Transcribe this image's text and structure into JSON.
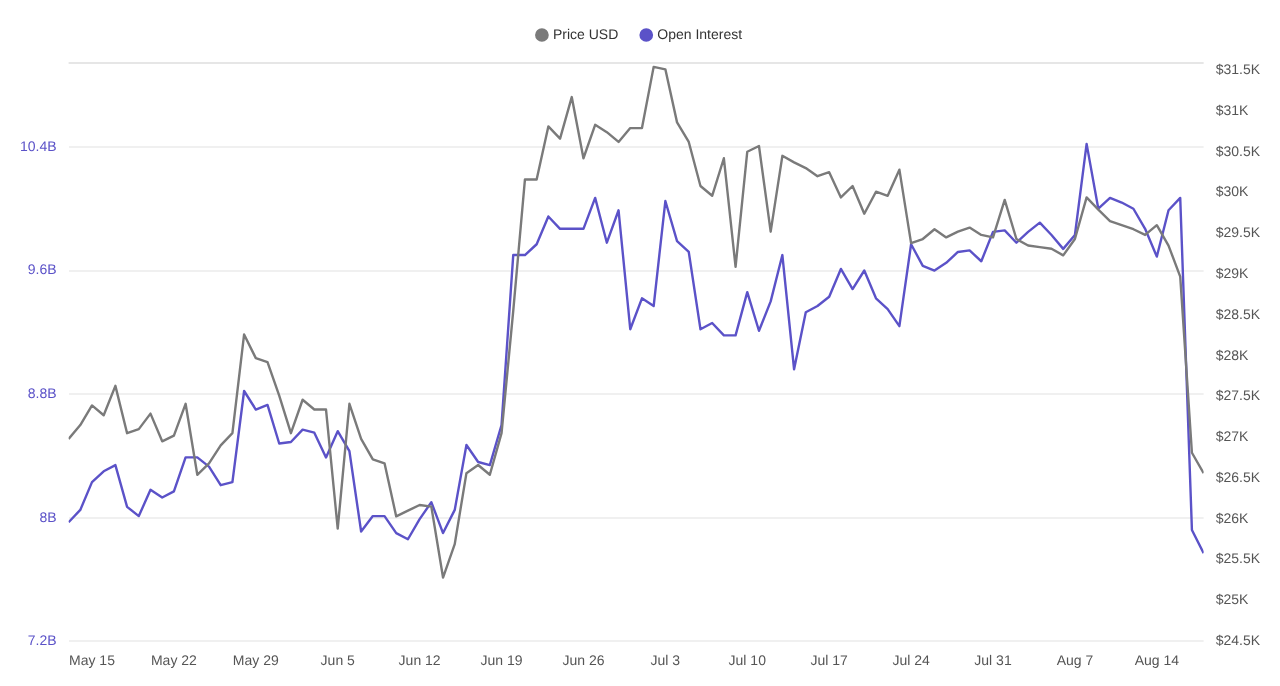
{
  "chart_data": {
    "type": "line",
    "x": [
      "--05-13",
      "--05-14",
      "--05-15",
      "--05-16",
      "--05-17",
      "--05-18",
      "--05-19",
      "--05-20",
      "--05-21",
      "--05-22",
      "--05-23",
      "--05-24",
      "--05-25",
      "--05-26",
      "--05-27",
      "--05-28",
      "--05-29",
      "--05-30",
      "--05-31",
      "--06-01",
      "--06-02",
      "--06-03",
      "--06-04",
      "--06-05",
      "--06-06",
      "--06-07",
      "--06-08",
      "--06-09",
      "--06-10",
      "--06-11",
      "--06-12",
      "--06-13",
      "--06-14",
      "--06-15",
      "--06-16",
      "--06-17",
      "--06-18",
      "--06-19",
      "--06-20",
      "--06-21",
      "--06-22",
      "--06-23",
      "--06-24",
      "--06-25",
      "--06-26",
      "--06-27",
      "--06-28",
      "--06-29",
      "--06-30",
      "--07-01",
      "--07-02",
      "--07-03",
      "--07-04",
      "--07-05",
      "--07-06",
      "--07-07",
      "--07-08",
      "--07-09",
      "--07-10",
      "--07-11",
      "--07-12",
      "--07-13",
      "--07-14",
      "--07-15",
      "--07-16",
      "--07-17",
      "--07-18",
      "--07-19",
      "--07-20",
      "--07-21",
      "--07-22",
      "--07-23",
      "--07-24",
      "--07-25",
      "--07-26",
      "--07-27",
      "--07-28",
      "--07-29",
      "--07-30",
      "--07-31",
      "--08-01",
      "--08-02",
      "--08-03",
      "--08-04",
      "--08-05",
      "--08-06",
      "--08-07",
      "--08-08",
      "--08-09",
      "--08-10",
      "--08-11",
      "--08-12",
      "--08-13",
      "--08-14",
      "--08-15",
      "--08-16",
      "--08-17",
      "--08-18"
    ],
    "series": [
      {
        "name": "Price USD",
        "color": "#7a7a7a",
        "axis": "y2",
        "values": [
          26.98,
          27.15,
          27.39,
          27.27,
          27.63,
          27.05,
          27.1,
          27.29,
          26.95,
          27.02,
          27.41,
          26.54,
          26.68,
          26.9,
          27.05,
          28.26,
          27.97,
          27.92,
          27.51,
          27.05,
          27.46,
          27.34,
          27.34,
          25.88,
          27.41,
          26.98,
          26.73,
          26.68,
          26.03,
          26.1,
          26.17,
          26.15,
          25.28,
          25.69,
          26.56,
          26.66,
          26.54,
          27.05,
          28.55,
          30.16,
          30.16,
          30.81,
          30.66,
          31.17,
          30.42,
          30.83,
          30.74,
          30.62,
          30.79,
          30.79,
          31.54,
          31.51,
          30.86,
          30.62,
          30.08,
          29.96,
          30.42,
          29.09,
          30.5,
          30.57,
          29.52,
          30.45,
          30.37,
          30.3,
          30.2,
          30.25,
          29.94,
          30.08,
          29.74,
          30.01,
          29.96,
          30.28,
          29.38,
          29.43,
          29.55,
          29.45,
          29.52,
          29.57,
          29.48,
          29.45,
          29.91,
          29.43,
          29.35,
          29.33,
          29.31,
          29.23,
          29.43,
          29.94,
          29.79,
          29.65,
          29.6,
          29.55,
          29.48,
          29.6,
          29.35,
          28.97,
          26.81,
          26.56
        ]
      },
      {
        "name": "Open Interest",
        "color": "#5b52c8",
        "axis": "y",
        "values": [
          7.97,
          8.05,
          8.23,
          8.3,
          8.34,
          8.07,
          8.01,
          8.18,
          8.13,
          8.17,
          8.39,
          8.39,
          8.33,
          8.21,
          8.23,
          8.82,
          8.7,
          8.73,
          8.48,
          8.49,
          8.57,
          8.55,
          8.39,
          8.56,
          8.43,
          7.91,
          8.01,
          8.01,
          7.9,
          7.86,
          7.99,
          8.1,
          7.9,
          8.05,
          8.47,
          8.36,
          8.34,
          8.6,
          9.7,
          9.7,
          9.77,
          9.95,
          9.87,
          9.87,
          9.87,
          10.07,
          9.78,
          9.99,
          9.22,
          9.42,
          9.37,
          10.05,
          9.79,
          9.72,
          9.22,
          9.26,
          9.18,
          9.18,
          9.46,
          9.21,
          9.4,
          9.7,
          8.96,
          9.33,
          9.37,
          9.43,
          9.61,
          9.48,
          9.6,
          9.42,
          9.35,
          9.24,
          9.77,
          9.63,
          9.6,
          9.65,
          9.72,
          9.73,
          9.66,
          9.85,
          9.86,
          9.78,
          9.85,
          9.91,
          9.83,
          9.74,
          9.83,
          10.42,
          10.0,
          10.07,
          10.04,
          10.0,
          9.87,
          9.69,
          9.99,
          10.07,
          7.92,
          7.77
        ]
      }
    ],
    "xlim": [
      "--05-13",
      "--08-18"
    ],
    "xticks": [
      {
        "value": "--05-15",
        "label": "May 15"
      },
      {
        "value": "--05-22",
        "label": "May 22"
      },
      {
        "value": "--05-29",
        "label": "May 29"
      },
      {
        "value": "--06-05",
        "label": "Jun 5"
      },
      {
        "value": "--06-12",
        "label": "Jun 12"
      },
      {
        "value": "--06-19",
        "label": "Jun 19"
      },
      {
        "value": "--06-26",
        "label": "Jun 26"
      },
      {
        "value": "--07-03",
        "label": "Jul 3"
      },
      {
        "value": "--07-10",
        "label": "Jul 10"
      },
      {
        "value": "--07-17",
        "label": "Jul 17"
      },
      {
        "value": "--07-24",
        "label": "Jul 24"
      },
      {
        "value": "--07-31",
        "label": "Jul 31"
      },
      {
        "value": "--08-07",
        "label": "Aug 7"
      },
      {
        "value": "--08-14",
        "label": "Aug 14"
      }
    ],
    "ylim": [
      7.2,
      10.95
    ],
    "yticks": [
      {
        "value": 7.2,
        "label": "7.2B"
      },
      {
        "value": 8,
        "label": "8B"
      },
      {
        "value": 8.8,
        "label": "8.8B"
      },
      {
        "value": 9.6,
        "label": "9.6B"
      },
      {
        "value": 10.4,
        "label": "10.4B"
      }
    ],
    "y2lim": [
      24.5,
      31.6
    ],
    "y2ticks": [
      {
        "value": 24.5,
        "label": "$24.5K"
      },
      {
        "value": 25,
        "label": "$25K"
      },
      {
        "value": 25.5,
        "label": "$25.5K"
      },
      {
        "value": 26,
        "label": "$26K"
      },
      {
        "value": 26.5,
        "label": "$26.5K"
      },
      {
        "value": 27,
        "label": "$27K"
      },
      {
        "value": 27.5,
        "label": "$27.5K"
      },
      {
        "value": 28,
        "label": "$28K"
      },
      {
        "value": 28.5,
        "label": "$28.5K"
      },
      {
        "value": 29,
        "label": "$29K"
      },
      {
        "value": 29.5,
        "label": "$29.5K"
      },
      {
        "value": 30,
        "label": "$30K"
      },
      {
        "value": 30.5,
        "label": "$30.5K"
      },
      {
        "value": 31,
        "label": "$31K"
      },
      {
        "value": 31.5,
        "label": "$31.5K"
      }
    ],
    "grid": "y",
    "legend": "top",
    "marker": "none",
    "line_style": "solid"
  }
}
